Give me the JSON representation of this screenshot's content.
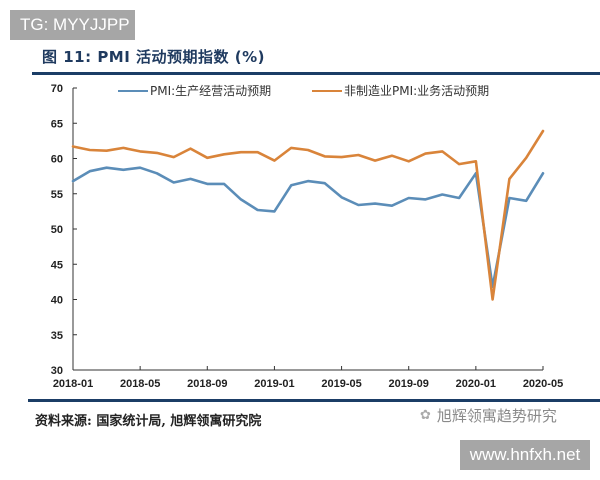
{
  "watermark_top": "TG: MYYJJPP",
  "figure_title": "图 11: PMI 活动预期指数 (%)",
  "legend": [
    {
      "label": "PMI:生产经营活动预期",
      "color": "#5b8db8"
    },
    {
      "label": "非制造业PMI:业务活动预期",
      "color": "#d9843a"
    }
  ],
  "source": "资料来源: 国家统计局, 旭辉领寓研究院",
  "watermark_brand": "旭辉领寓趋势研究",
  "watermark_bottom": "www.hnfxh.net",
  "chart_data": {
    "type": "line",
    "title": "图 11: PMI 活动预期指数 (%)",
    "xlabel": "",
    "ylabel": "",
    "ylim": [
      30,
      70
    ],
    "yticks": [
      30,
      35,
      40,
      45,
      50,
      55,
      60,
      65,
      70
    ],
    "xtick_labels": [
      "2018-01",
      "2018-05",
      "2018-09",
      "2019-01",
      "2019-05",
      "2019-09",
      "2020-01",
      "2020-05"
    ],
    "grid": false,
    "legend_position": "top",
    "x": [
      "2018-01",
      "2018-02",
      "2018-03",
      "2018-04",
      "2018-05",
      "2018-06",
      "2018-07",
      "2018-08",
      "2018-09",
      "2018-10",
      "2018-11",
      "2018-12",
      "2019-01",
      "2019-02",
      "2019-03",
      "2019-04",
      "2019-05",
      "2019-06",
      "2019-07",
      "2019-08",
      "2019-09",
      "2019-10",
      "2019-11",
      "2019-12",
      "2020-01",
      "2020-02",
      "2020-03",
      "2020-04",
      "2020-05"
    ],
    "series": [
      {
        "name": "PMI:生产经营活动预期",
        "color": "#5b8db8",
        "values": [
          56.8,
          58.2,
          58.7,
          58.4,
          58.7,
          57.9,
          56.6,
          57.1,
          56.4,
          56.4,
          54.2,
          52.7,
          52.5,
          56.2,
          56.8,
          56.5,
          54.5,
          53.4,
          53.6,
          53.3,
          54.4,
          54.2,
          54.9,
          54.4,
          57.9,
          41.8,
          54.4,
          54.0,
          57.9
        ]
      },
      {
        "name": "非制造业PMI:业务活动预期",
        "color": "#d9843a",
        "values": [
          61.7,
          61.2,
          61.1,
          61.5,
          61.0,
          60.8,
          60.2,
          61.4,
          60.1,
          60.6,
          60.9,
          60.9,
          59.7,
          61.5,
          61.2,
          60.3,
          60.2,
          60.5,
          59.7,
          60.4,
          59.6,
          60.7,
          61.0,
          59.2,
          59.6,
          40.0,
          57.1,
          60.1,
          63.9
        ]
      }
    ]
  }
}
